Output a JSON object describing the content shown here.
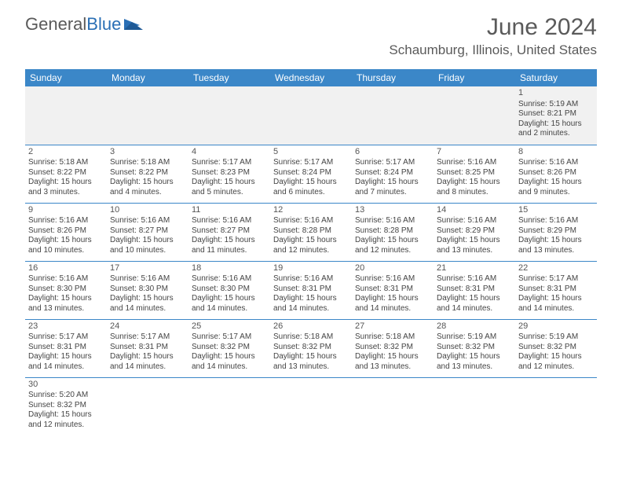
{
  "logo": {
    "text1": "General",
    "text2": "Blue"
  },
  "title": "June 2024",
  "location": "Schaumburg, Illinois, United States",
  "colors": {
    "header_bg": "#3b87c8",
    "header_text": "#ffffff",
    "row_border": "#3b87c8",
    "firstrow_bg": "#f1f1f1",
    "body_text": "#444444",
    "title_text": "#5a5a5a",
    "logo_gray": "#5a5a5a",
    "logo_blue": "#2a6fb5"
  },
  "dayHeaders": [
    "Sunday",
    "Monday",
    "Tuesday",
    "Wednesday",
    "Thursday",
    "Friday",
    "Saturday"
  ],
  "weeks": [
    [
      null,
      null,
      null,
      null,
      null,
      null,
      {
        "n": "1",
        "sr": "5:19 AM",
        "ss": "8:21 PM",
        "dl": "15 hours and 2 minutes."
      }
    ],
    [
      {
        "n": "2",
        "sr": "5:18 AM",
        "ss": "8:22 PM",
        "dl": "15 hours and 3 minutes."
      },
      {
        "n": "3",
        "sr": "5:18 AM",
        "ss": "8:22 PM",
        "dl": "15 hours and 4 minutes."
      },
      {
        "n": "4",
        "sr": "5:17 AM",
        "ss": "8:23 PM",
        "dl": "15 hours and 5 minutes."
      },
      {
        "n": "5",
        "sr": "5:17 AM",
        "ss": "8:24 PM",
        "dl": "15 hours and 6 minutes."
      },
      {
        "n": "6",
        "sr": "5:17 AM",
        "ss": "8:24 PM",
        "dl": "15 hours and 7 minutes."
      },
      {
        "n": "7",
        "sr": "5:16 AM",
        "ss": "8:25 PM",
        "dl": "15 hours and 8 minutes."
      },
      {
        "n": "8",
        "sr": "5:16 AM",
        "ss": "8:26 PM",
        "dl": "15 hours and 9 minutes."
      }
    ],
    [
      {
        "n": "9",
        "sr": "5:16 AM",
        "ss": "8:26 PM",
        "dl": "15 hours and 10 minutes."
      },
      {
        "n": "10",
        "sr": "5:16 AM",
        "ss": "8:27 PM",
        "dl": "15 hours and 10 minutes."
      },
      {
        "n": "11",
        "sr": "5:16 AM",
        "ss": "8:27 PM",
        "dl": "15 hours and 11 minutes."
      },
      {
        "n": "12",
        "sr": "5:16 AM",
        "ss": "8:28 PM",
        "dl": "15 hours and 12 minutes."
      },
      {
        "n": "13",
        "sr": "5:16 AM",
        "ss": "8:28 PM",
        "dl": "15 hours and 12 minutes."
      },
      {
        "n": "14",
        "sr": "5:16 AM",
        "ss": "8:29 PM",
        "dl": "15 hours and 13 minutes."
      },
      {
        "n": "15",
        "sr": "5:16 AM",
        "ss": "8:29 PM",
        "dl": "15 hours and 13 minutes."
      }
    ],
    [
      {
        "n": "16",
        "sr": "5:16 AM",
        "ss": "8:30 PM",
        "dl": "15 hours and 13 minutes."
      },
      {
        "n": "17",
        "sr": "5:16 AM",
        "ss": "8:30 PM",
        "dl": "15 hours and 14 minutes."
      },
      {
        "n": "18",
        "sr": "5:16 AM",
        "ss": "8:30 PM",
        "dl": "15 hours and 14 minutes."
      },
      {
        "n": "19",
        "sr": "5:16 AM",
        "ss": "8:31 PM",
        "dl": "15 hours and 14 minutes."
      },
      {
        "n": "20",
        "sr": "5:16 AM",
        "ss": "8:31 PM",
        "dl": "15 hours and 14 minutes."
      },
      {
        "n": "21",
        "sr": "5:16 AM",
        "ss": "8:31 PM",
        "dl": "15 hours and 14 minutes."
      },
      {
        "n": "22",
        "sr": "5:17 AM",
        "ss": "8:31 PM",
        "dl": "15 hours and 14 minutes."
      }
    ],
    [
      {
        "n": "23",
        "sr": "5:17 AM",
        "ss": "8:31 PM",
        "dl": "15 hours and 14 minutes."
      },
      {
        "n": "24",
        "sr": "5:17 AM",
        "ss": "8:31 PM",
        "dl": "15 hours and 14 minutes."
      },
      {
        "n": "25",
        "sr": "5:17 AM",
        "ss": "8:32 PM",
        "dl": "15 hours and 14 minutes."
      },
      {
        "n": "26",
        "sr": "5:18 AM",
        "ss": "8:32 PM",
        "dl": "15 hours and 13 minutes."
      },
      {
        "n": "27",
        "sr": "5:18 AM",
        "ss": "8:32 PM",
        "dl": "15 hours and 13 minutes."
      },
      {
        "n": "28",
        "sr": "5:19 AM",
        "ss": "8:32 PM",
        "dl": "15 hours and 13 minutes."
      },
      {
        "n": "29",
        "sr": "5:19 AM",
        "ss": "8:32 PM",
        "dl": "15 hours and 12 minutes."
      }
    ],
    [
      {
        "n": "30",
        "sr": "5:20 AM",
        "ss": "8:32 PM",
        "dl": "15 hours and 12 minutes."
      },
      null,
      null,
      null,
      null,
      null,
      null
    ]
  ],
  "labels": {
    "sunrise": "Sunrise: ",
    "sunset": "Sunset: ",
    "daylight": "Daylight: "
  }
}
